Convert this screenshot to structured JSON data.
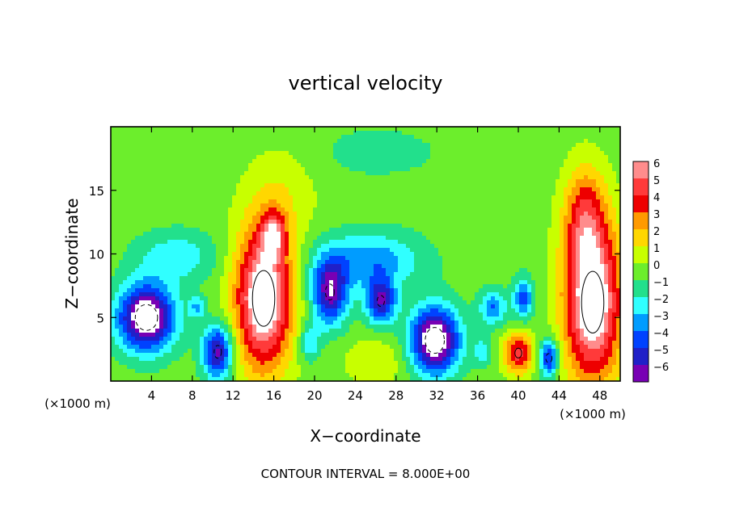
{
  "chart_data": {
    "type": "heatmap",
    "title": "vertical velocity",
    "xlabel": "X−coordinate",
    "ylabel": "Z−coordinate",
    "x_unit": "(×1000 m)",
    "footer": "CONTOUR INTERVAL = 8.000E+00",
    "xlim": [
      0,
      50
    ],
    "ylim": [
      0,
      20
    ],
    "x_ticks": [
      4,
      8,
      12,
      16,
      20,
      24,
      28,
      32,
      36,
      40,
      44,
      48
    ],
    "y_ticks": [
      5,
      10,
      15
    ],
    "colorbar": {
      "levels": [
        6,
        5,
        4,
        3,
        2,
        1,
        0,
        "−1",
        "−2",
        "−3",
        "−4",
        "−5",
        "−6"
      ],
      "colors": [
        "#ff8c8c",
        "#ff3a3a",
        "#ee0000",
        "#ff9a00",
        "#ffd700",
        "#c8ff00",
        "#6cee2c",
        "#22e08c",
        "#30ffff",
        "#009cff",
        "#0042ff",
        "#2020c8",
        "#7800b4"
      ]
    },
    "features": [
      {
        "name": "updraft",
        "x": 15,
        "z": 6.5,
        "rx": 2.8,
        "rz": 5.6,
        "peak": 8
      },
      {
        "name": "updraft",
        "x": 47.3,
        "z": 6.2,
        "rx": 2.8,
        "rz": 6.2,
        "peak": 8
      },
      {
        "name": "updraft",
        "x": 46.5,
        "z": 13,
        "rx": 2.0,
        "rz": 4.0,
        "peak": 3.5
      },
      {
        "name": "updraft",
        "x": 40,
        "z": 2.2,
        "rx": 1.4,
        "rz": 1.6,
        "peak": 5
      },
      {
        "name": "updraft",
        "x": 16,
        "z": 11.5,
        "rx": 1.2,
        "rz": 1.8,
        "peak": 4
      },
      {
        "name": "updraft",
        "x": 26,
        "z": 1.6,
        "rx": 3.0,
        "rz": 1.8,
        "peak": 1.5
      },
      {
        "name": "updraft",
        "x": 17,
        "z": 15,
        "rx": 3.5,
        "rz": 4.0,
        "peak": 1.2
      },
      {
        "name": "downdraft",
        "x": 3.5,
        "z": 5.0,
        "rx": 2.8,
        "rz": 2.6,
        "peak": -8
      },
      {
        "name": "downdraft",
        "x": 10.5,
        "z": 2.3,
        "rx": 1.5,
        "rz": 2.1,
        "peak": -6
      },
      {
        "name": "downdraft",
        "x": 21.5,
        "z": 7.0,
        "rx": 1.8,
        "rz": 2.6,
        "peak": -6
      },
      {
        "name": "downdraft",
        "x": 26.5,
        "z": 6.3,
        "rx": 1.5,
        "rz": 1.8,
        "peak": -5.5
      },
      {
        "name": "downdraft",
        "x": 31.8,
        "z": 3.2,
        "rx": 2.4,
        "rz": 2.6,
        "peak": -8
      },
      {
        "name": "downdraft",
        "x": 43.0,
        "z": 1.8,
        "rx": 0.9,
        "rz": 1.5,
        "peak": -5
      },
      {
        "name": "downdraft",
        "x": 40.5,
        "z": 6.5,
        "rx": 1.0,
        "rz": 1.6,
        "peak": -4
      },
      {
        "name": "downdraft",
        "x": 37.5,
        "z": 5.8,
        "rx": 1.3,
        "rz": 1.4,
        "peak": -3.5
      },
      {
        "name": "downdraft",
        "x": 25.5,
        "z": 9.5,
        "rx": 5.0,
        "rz": 2.2,
        "peak": -3.2
      },
      {
        "name": "downdraft",
        "x": 6.5,
        "z": 9.8,
        "rx": 4.0,
        "rz": 2.0,
        "peak": -2.2
      },
      {
        "name": "downdraft",
        "x": 19.5,
        "z": 3.0,
        "rx": 1.0,
        "rz": 1.5,
        "peak": -2.5
      },
      {
        "name": "downdraft",
        "x": 8.5,
        "z": 5.8,
        "rx": 0.8,
        "rz": 0.9,
        "peak": -2.5
      },
      {
        "name": "downdraft",
        "x": 36.5,
        "z": 2.3,
        "rx": 0.9,
        "rz": 1.0,
        "peak": -2.2
      },
      {
        "name": "downdraft",
        "x": 26,
        "z": 18,
        "rx": 8.0,
        "rz": 2.5,
        "peak": -0.8
      }
    ]
  }
}
